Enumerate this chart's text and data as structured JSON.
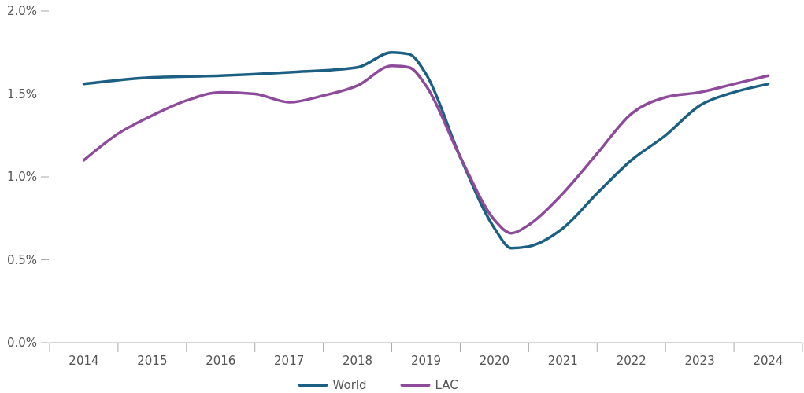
{
  "chart_data": {
    "type": "line",
    "legend": "bottom",
    "xlim": [
      2013.5,
      2024.5
    ],
    "xticks": [
      {
        "value": 2013.5,
        "label": null
      },
      {
        "value": 2014,
        "label": "2014"
      },
      {
        "value": 2014.5,
        "label": null
      },
      {
        "value": 2015,
        "label": "2015"
      },
      {
        "value": 2015.5,
        "label": null
      },
      {
        "value": 2016,
        "label": "2016"
      },
      {
        "value": 2016.5,
        "label": null
      },
      {
        "value": 2017,
        "label": "2017"
      },
      {
        "value": 2017.5,
        "label": null
      },
      {
        "value": 2018,
        "label": "2018"
      },
      {
        "value": 2018.5,
        "label": null
      },
      {
        "value": 2019,
        "label": "2019"
      },
      {
        "value": 2019.5,
        "label": null
      },
      {
        "value": 2020,
        "label": "2020"
      },
      {
        "value": 2020.5,
        "label": null
      },
      {
        "value": 2021,
        "label": "2021"
      },
      {
        "value": 2021.5,
        "label": null
      },
      {
        "value": 2022,
        "label": "2022"
      },
      {
        "value": 2022.5,
        "label": null
      },
      {
        "value": 2023,
        "label": "2023"
      },
      {
        "value": 2023.5,
        "label": null
      },
      {
        "value": 2024,
        "label": "2024"
      },
      {
        "value": 2024.5,
        "label": null
      }
    ],
    "ylim": [
      0,
      2.0
    ],
    "yticks": [
      {
        "value": 0,
        "label": "0.0%"
      },
      {
        "value": 0.5,
        "label": "0.5%"
      },
      {
        "value": 1.0,
        "label": "1.0%"
      },
      {
        "value": 1.5,
        "label": "1.5%"
      },
      {
        "value": 2.0,
        "label": "2.0%"
      }
    ],
    "series": [
      {
        "name": "World",
        "color": "#1b6083",
        "x": [
          2014,
          2015,
          2016,
          2017,
          2018,
          2018.5,
          2018.75,
          2019,
          2019.5,
          2020,
          2020.25,
          2020.5,
          2021,
          2021.5,
          2022,
          2022.5,
          2023,
          2023.5,
          2024
        ],
        "values": [
          1.56,
          1.6,
          1.61,
          1.63,
          1.66,
          1.75,
          1.74,
          1.62,
          1.12,
          0.69,
          0.57,
          0.58,
          0.69,
          0.9,
          1.1,
          1.25,
          1.43,
          1.51,
          1.56
        ]
      },
      {
        "name": "LAC",
        "color": "#8e4a9b",
        "x": [
          2014,
          2014.5,
          2015,
          2015.5,
          2016,
          2016.5,
          2017,
          2017.5,
          2018,
          2018.5,
          2018.75,
          2019,
          2019.5,
          2020,
          2020.25,
          2020.5,
          2021,
          2021.5,
          2022,
          2022.5,
          2023,
          2023.5,
          2024
        ],
        "values": [
          1.1,
          1.26,
          1.37,
          1.46,
          1.51,
          1.5,
          1.45,
          1.49,
          1.55,
          1.67,
          1.66,
          1.55,
          1.12,
          0.74,
          0.66,
          0.71,
          0.9,
          1.14,
          1.38,
          1.48,
          1.51,
          1.56,
          1.61
        ]
      }
    ]
  }
}
